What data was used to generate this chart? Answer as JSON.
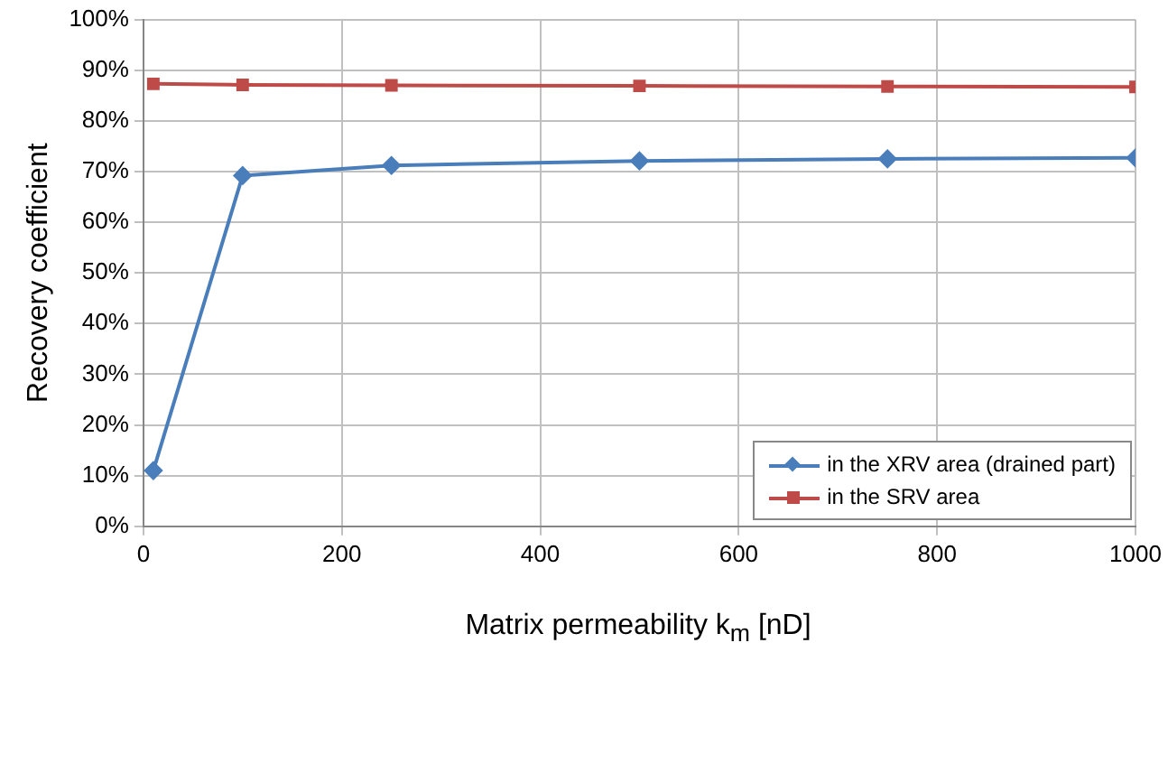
{
  "chart_data": {
    "type": "line",
    "xlabel": "Matrix permeability k$_{m}$ [nD]",
    "ylabel": "Recovery coefficient",
    "x": [
      10,
      100,
      250,
      500,
      750,
      1000
    ],
    "series": [
      {
        "name": "in the XRV area (drained part)",
        "color": "#4a7ebb",
        "marker": "diamond",
        "values": [
          11,
          69.2,
          71.2,
          72.1,
          72.5,
          72.7
        ]
      },
      {
        "name": "in the SRV area",
        "color": "#be4b48",
        "marker": "square",
        "values": [
          87.3,
          87.1,
          87.0,
          86.9,
          86.8,
          86.7
        ]
      }
    ],
    "xlim": [
      0,
      1000
    ],
    "xticks": [
      0,
      200,
      400,
      600,
      800,
      1000
    ],
    "ylim": [
      0,
      100
    ],
    "yticks": [
      {
        "value": 0,
        "label": "0%"
      },
      {
        "value": 10,
        "label": "10%"
      },
      {
        "value": 20,
        "label": "20%"
      },
      {
        "value": 30,
        "label": "30%"
      },
      {
        "value": 40,
        "label": "40%"
      },
      {
        "value": 50,
        "label": "50%"
      },
      {
        "value": 60,
        "label": "60%"
      },
      {
        "value": 70,
        "label": "70%"
      },
      {
        "value": 80,
        "label": "80%"
      },
      {
        "value": 90,
        "label": "90%"
      },
      {
        "value": 100,
        "label": "100%"
      }
    ],
    "grid": true,
    "legend": "bottom right",
    "line_style": "solid"
  }
}
